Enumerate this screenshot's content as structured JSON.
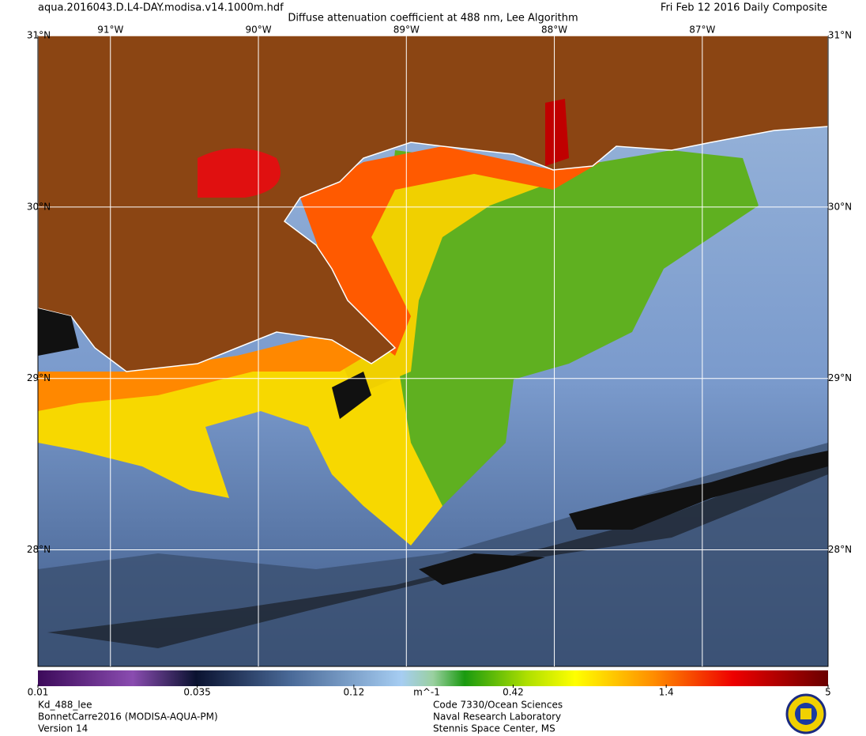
{
  "header": {
    "file": "aqua.2016043.D.L4-DAY.modisa.v14.1000m.hdf",
    "title": "Diffuse attenuation coefficient at 488 nm, Lee Algorithm",
    "date": "Fri Feb 12 2016 Daily Composite"
  },
  "map": {
    "lon_lim": [
      -91.49,
      -86.15
    ],
    "lat_lim": [
      27.32,
      31
    ],
    "lat_ticks": [
      {
        "value": 31,
        "label": "31°N"
      },
      {
        "value": 30,
        "label": "30°N"
      },
      {
        "value": 29,
        "label": "29°N"
      },
      {
        "value": 28,
        "label": "28°N"
      }
    ],
    "lon_ticks": [
      {
        "value": -91,
        "label": "91°W"
      },
      {
        "value": -90,
        "label": "90°W"
      },
      {
        "value": -89,
        "label": "89°W"
      },
      {
        "value": -88,
        "label": "88°W"
      },
      {
        "value": -87,
        "label": "87°W"
      }
    ]
  },
  "colorbar": {
    "scale": "log",
    "lim": [
      0.01,
      5
    ],
    "ticks": [
      0.01,
      0.035,
      0.12,
      0.42,
      1.4,
      5
    ],
    "unit": "m^-1"
  },
  "footer": {
    "product": "Kd_488_lee",
    "dataset": "BonnetCarre2016 (MODISA-AQUA-PM)",
    "version": "Version 14",
    "org": [
      "Code 7330/Ocean Sciences",
      "Naval Research Laboratory",
      "Stennis Space Center, MS"
    ]
  }
}
